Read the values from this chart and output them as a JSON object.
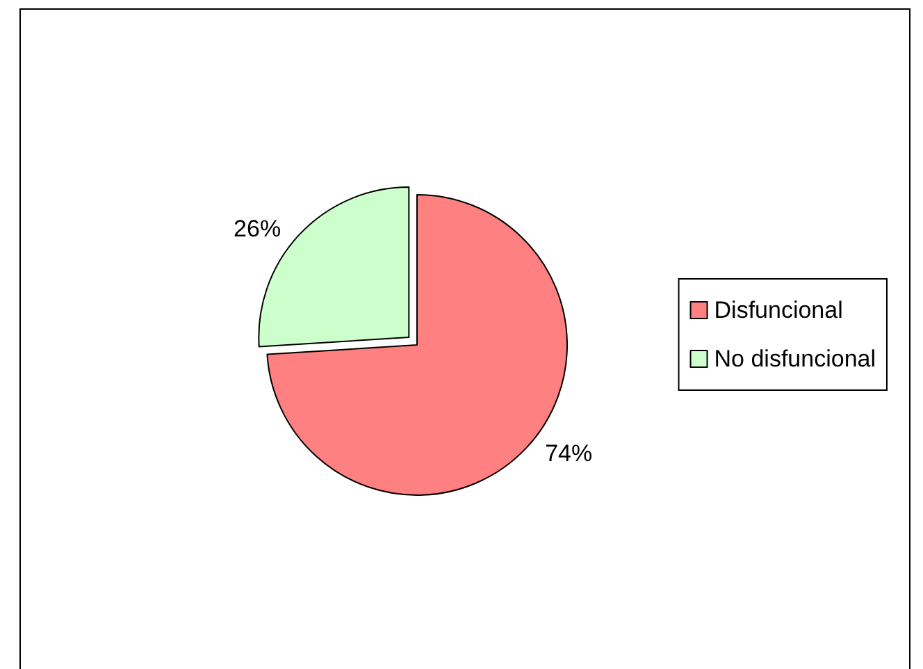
{
  "chart_data": {
    "type": "pie",
    "categories": [
      "Disfuncional",
      "No disfuncional"
    ],
    "values": [
      74,
      26
    ],
    "value_labels": [
      "74%",
      "26%"
    ],
    "colors": [
      "#ff8080",
      "#ccffcc"
    ],
    "legend": "right"
  }
}
